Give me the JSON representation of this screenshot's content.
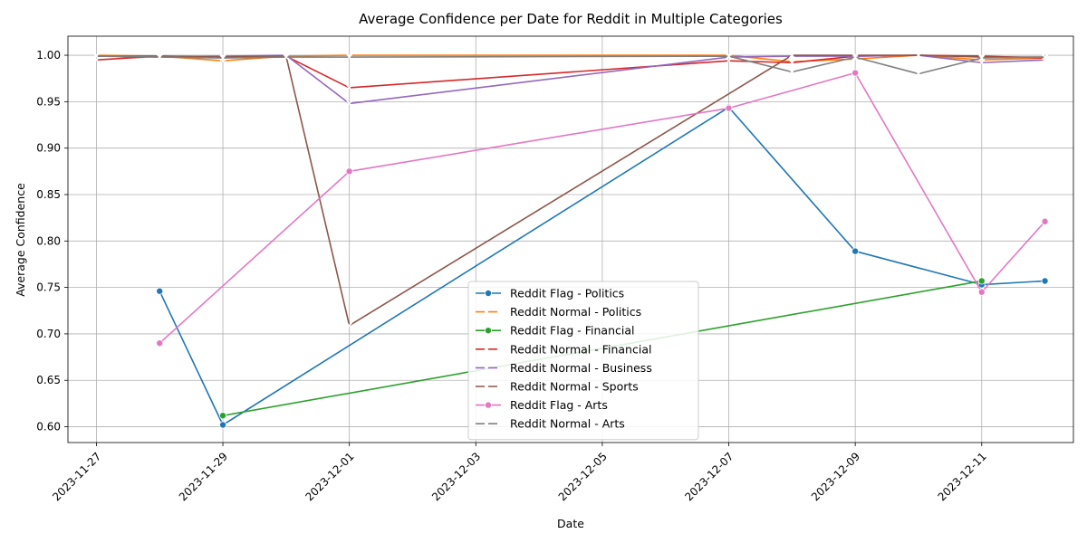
{
  "chart_data": {
    "type": "line",
    "title": "Average Confidence per Date for Reddit in Multiple Categories",
    "xlabel": "Date",
    "ylabel": "Average Confidence",
    "xlim": [
      "2023-11-26.55",
      "2023-12-12.45"
    ],
    "ylim": [
      0.583,
      1.0205
    ],
    "x_ticks": [
      "2023-11-27",
      "2023-11-29",
      "2023-12-01",
      "2023-12-03",
      "2023-12-05",
      "2023-12-07",
      "2023-12-09",
      "2023-12-11"
    ],
    "y_ticks": [
      "0.60",
      "0.65",
      "0.70",
      "0.75",
      "0.80",
      "0.85",
      "0.90",
      "0.95",
      "1.00"
    ],
    "grid": true,
    "legend_position": "bottom-center",
    "series": [
      {
        "name": "Reddit Flag - Politics",
        "color": "#1f77b4",
        "marker": "circle",
        "points": [
          [
            "2023-11-28",
            0.746
          ],
          [
            "2023-11-29",
            0.602
          ],
          [
            "2023-12-07",
            0.944
          ],
          [
            "2023-12-09",
            0.789
          ],
          [
            "2023-12-11",
            0.753
          ],
          [
            "2023-12-12",
            0.757
          ]
        ]
      },
      {
        "name": "Reddit Normal - Politics",
        "color": "#ff7f0e",
        "marker": "x",
        "points": [
          [
            "2023-11-27",
            1.0
          ],
          [
            "2023-11-28",
            0.999
          ],
          [
            "2023-11-29",
            0.994
          ],
          [
            "2023-11-30",
            0.999
          ],
          [
            "2023-12-01",
            1.0
          ],
          [
            "2023-12-07",
            1.0
          ],
          [
            "2023-12-08",
            0.993
          ],
          [
            "2023-12-09",
            0.996
          ],
          [
            "2023-12-10",
            1.0
          ],
          [
            "2023-12-11",
            0.995
          ],
          [
            "2023-12-12",
            0.997
          ]
        ]
      },
      {
        "name": "Reddit Flag - Financial",
        "color": "#2ca02c",
        "marker": "circle",
        "points": [
          [
            "2023-11-29",
            0.612
          ],
          [
            "2023-12-11",
            0.757
          ]
        ]
      },
      {
        "name": "Reddit Normal - Financial",
        "color": "#d62728",
        "marker": "x",
        "points": [
          [
            "2023-11-27",
            0.995
          ],
          [
            "2023-11-28",
            0.999
          ],
          [
            "2023-11-29",
            0.998
          ],
          [
            "2023-11-30",
            0.999
          ],
          [
            "2023-12-01",
            0.965
          ],
          [
            "2023-12-07",
            0.994
          ],
          [
            "2023-12-08",
            0.992
          ],
          [
            "2023-12-09",
            0.999
          ],
          [
            "2023-12-10",
            1.0
          ],
          [
            "2023-12-11",
            0.999
          ],
          [
            "2023-12-12",
            0.997
          ]
        ]
      },
      {
        "name": "Reddit Normal - Business",
        "color": "#9467bd",
        "marker": "x",
        "points": [
          [
            "2023-11-27",
            0.999
          ],
          [
            "2023-11-28",
            0.998
          ],
          [
            "2023-11-29",
            0.999
          ],
          [
            "2023-11-30",
            1.0
          ],
          [
            "2023-12-01",
            0.948
          ],
          [
            "2023-12-07",
            0.998
          ],
          [
            "2023-12-08",
            0.999
          ],
          [
            "2023-12-09",
            0.999
          ],
          [
            "2023-12-10",
            1.0
          ],
          [
            "2023-12-11",
            0.992
          ],
          [
            "2023-12-12",
            0.995
          ]
        ]
      },
      {
        "name": "Reddit Normal - Sports",
        "color": "#8c564b",
        "marker": "x",
        "points": [
          [
            "2023-11-27",
            0.999
          ],
          [
            "2023-11-28",
            0.999
          ],
          [
            "2023-11-29",
            0.998
          ],
          [
            "2023-11-30",
            0.999
          ],
          [
            "2023-12-01",
            0.709
          ],
          [
            "2023-12-08",
            1.0
          ],
          [
            "2023-12-09",
            1.0
          ],
          [
            "2023-12-10",
            1.0
          ],
          [
            "2023-12-11",
            0.998
          ],
          [
            "2023-12-12",
            0.998
          ]
        ]
      },
      {
        "name": "Reddit Flag - Arts",
        "color": "#e377c2",
        "marker": "circle",
        "points": [
          [
            "2023-11-28",
            0.69
          ],
          [
            "2023-12-01",
            0.875
          ],
          [
            "2023-12-07",
            0.943
          ],
          [
            "2023-12-09",
            0.981
          ],
          [
            "2023-12-11",
            0.745
          ],
          [
            "2023-12-12",
            0.821
          ]
        ]
      },
      {
        "name": "Reddit Normal - Arts",
        "color": "#7f7f7f",
        "marker": "x",
        "points": [
          [
            "2023-11-27",
            0.999
          ],
          [
            "2023-11-28",
            0.998
          ],
          [
            "2023-11-29",
            0.997
          ],
          [
            "2023-11-30",
            0.998
          ],
          [
            "2023-12-01",
            0.998
          ],
          [
            "2023-12-07",
            0.999
          ],
          [
            "2023-12-08",
            0.982
          ],
          [
            "2023-12-09",
            0.998
          ],
          [
            "2023-12-10",
            0.98
          ],
          [
            "2023-12-11",
            0.997
          ],
          [
            "2023-12-12",
            0.998
          ]
        ]
      }
    ]
  }
}
